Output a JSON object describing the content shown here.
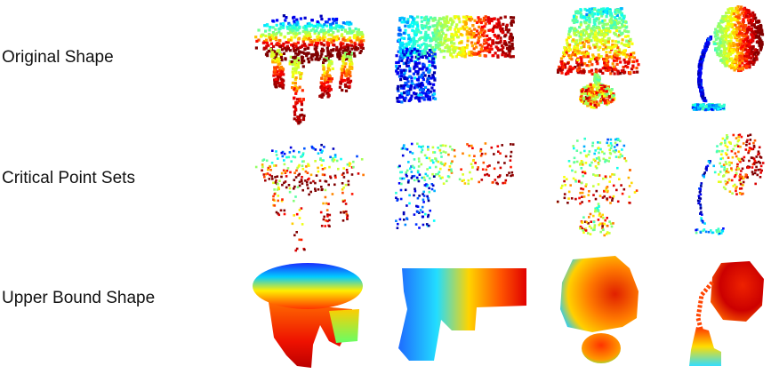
{
  "figure": {
    "rows": [
      {
        "label": "Original Shape"
      },
      {
        "label": "Critical Point Sets"
      },
      {
        "label": "Upper Bound Shape"
      }
    ],
    "shapes": [
      "table",
      "gun",
      "lamp",
      "desk-lamp"
    ]
  },
  "colormap": {
    "name": "jet",
    "stops": [
      "#00008f",
      "#0000ff",
      "#00ffff",
      "#7fff7f",
      "#ffff00",
      "#ff0000",
      "#7f0000"
    ]
  }
}
